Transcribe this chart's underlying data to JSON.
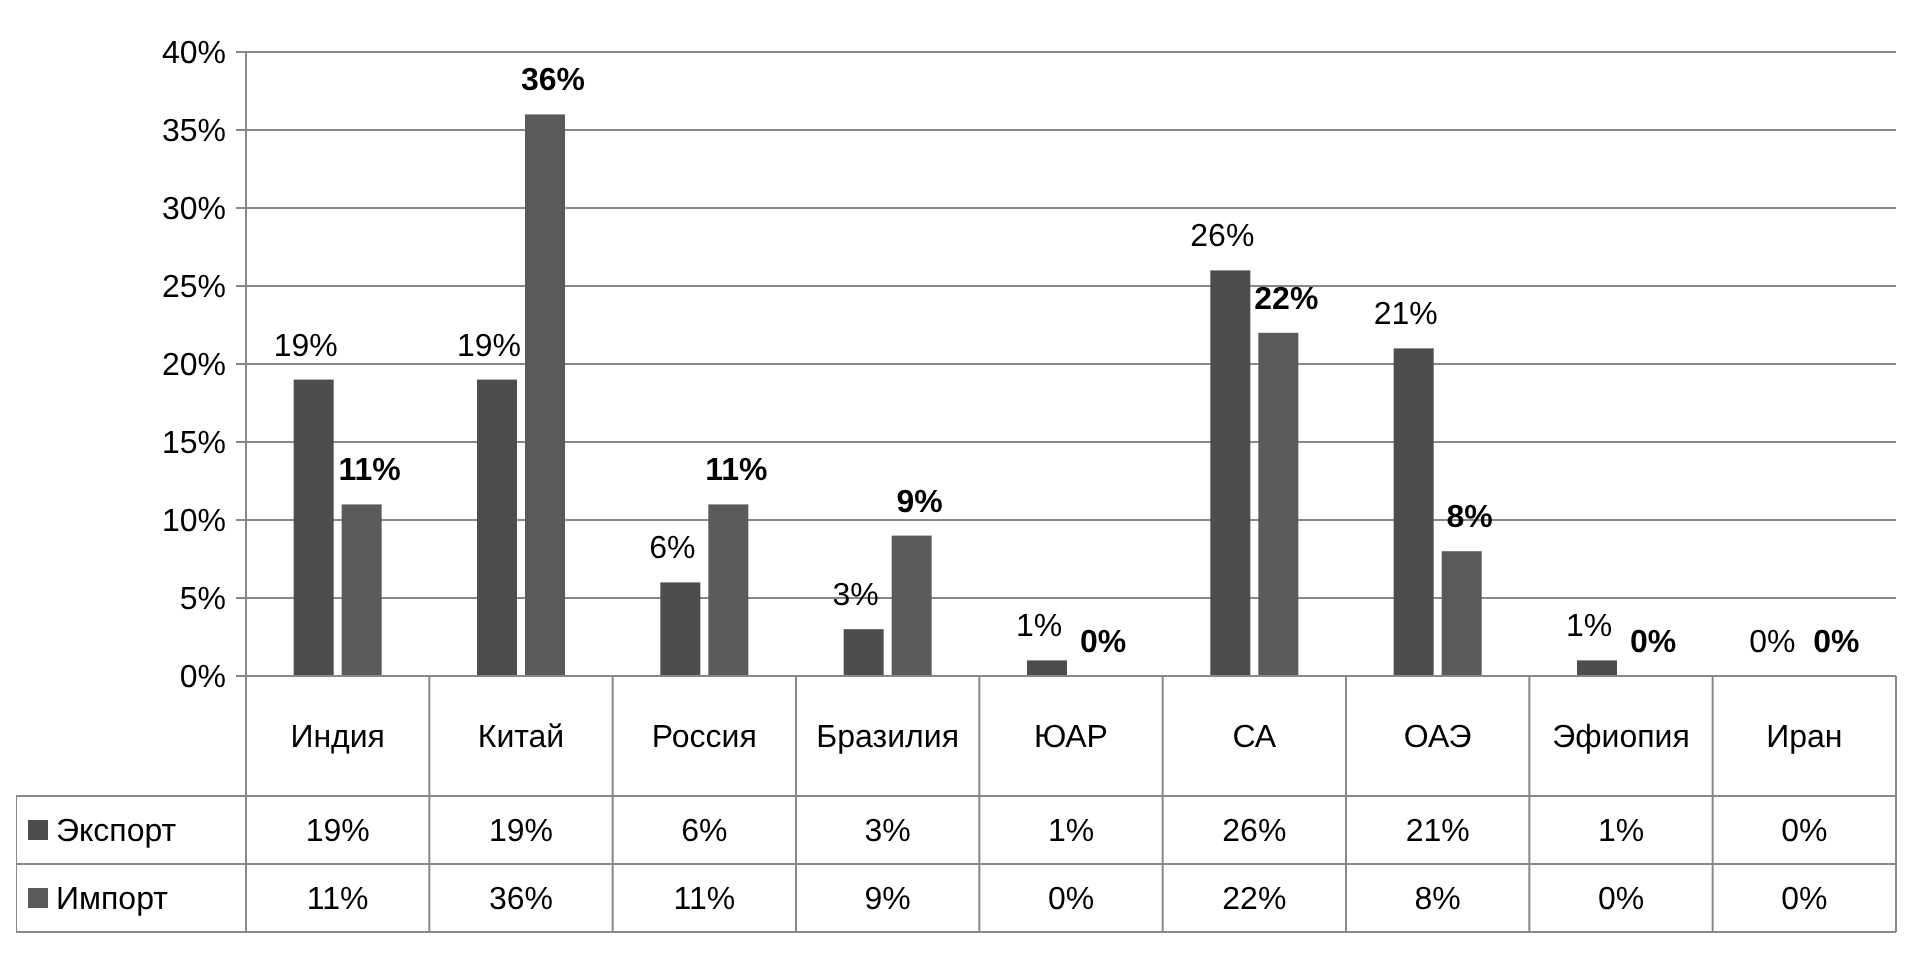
{
  "chart_data": {
    "type": "bar",
    "categories": [
      "Индия",
      "Китай",
      "Россия",
      "Бразилия",
      "ЮАР",
      "СА",
      "ОАЭ",
      "Эфиопия",
      "Иран"
    ],
    "series": [
      {
        "name": "Экспорт",
        "color": "#4d4d4d",
        "values": [
          19,
          19,
          6,
          3,
          1,
          26,
          21,
          1,
          0
        ],
        "value_labels": [
          "19%",
          "19%",
          "6%",
          "3%",
          "1%",
          "26%",
          "21%",
          "1%",
          "0%"
        ]
      },
      {
        "name": "Импорт",
        "color": "#5a5a5a",
        "values": [
          11,
          36,
          11,
          9,
          0,
          22,
          8,
          0,
          0
        ],
        "value_labels": [
          "11%",
          "36%",
          "11%",
          "9%",
          "0%",
          "22%",
          "8%",
          "0%",
          "0%"
        ]
      }
    ],
    "ylim": [
      0,
      40
    ],
    "yticks": [
      {
        "value": 0,
        "label": "0%"
      },
      {
        "value": 5,
        "label": "5%"
      },
      {
        "value": 10,
        "label": "10%"
      },
      {
        "value": 15,
        "label": "15%"
      },
      {
        "value": 20,
        "label": "20%"
      },
      {
        "value": 25,
        "label": "25%"
      },
      {
        "value": 30,
        "label": "30%"
      },
      {
        "value": 35,
        "label": "35%"
      },
      {
        "value": 40,
        "label": "40%"
      }
    ],
    "grid": "y",
    "legend": "bottom"
  }
}
